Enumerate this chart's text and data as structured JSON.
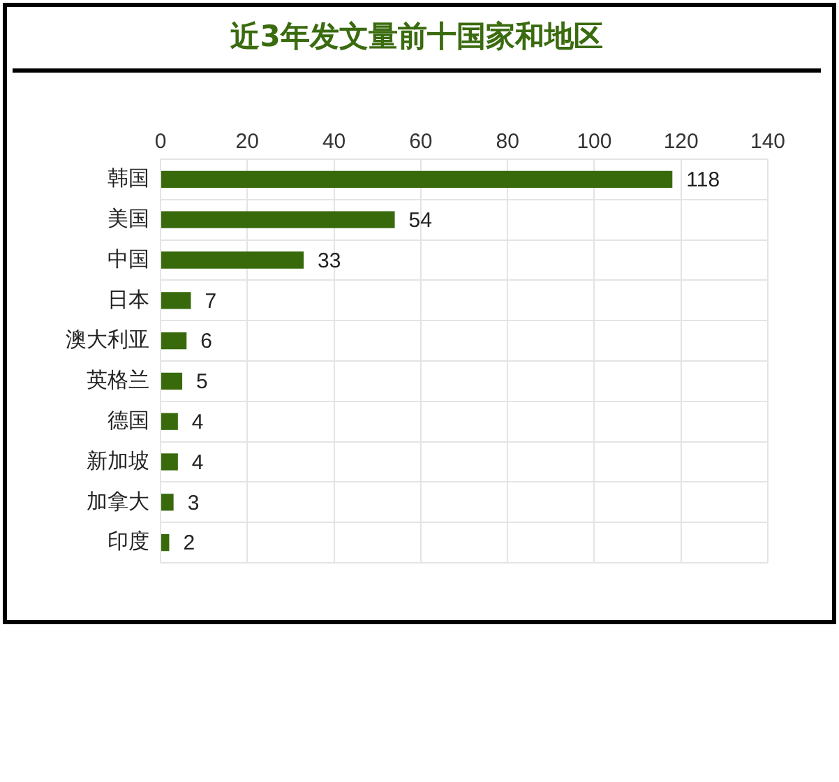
{
  "chart_data": {
    "type": "bar",
    "orientation": "horizontal",
    "title": "近3年发文量前十国家和地区",
    "categories": [
      "韩国",
      "美国",
      "中国",
      "日本",
      "澳大利亚",
      "英格兰",
      "德国",
      "新加坡",
      "加拿大",
      "印度"
    ],
    "values": [
      118,
      54,
      33,
      7,
      6,
      5,
      4,
      4,
      3,
      2
    ],
    "color": "#386a0c",
    "xlim": [
      0,
      140
    ],
    "xticks": [
      0,
      20,
      40,
      60,
      80,
      100,
      120,
      140
    ],
    "grid": true,
    "data_labels": true
  }
}
